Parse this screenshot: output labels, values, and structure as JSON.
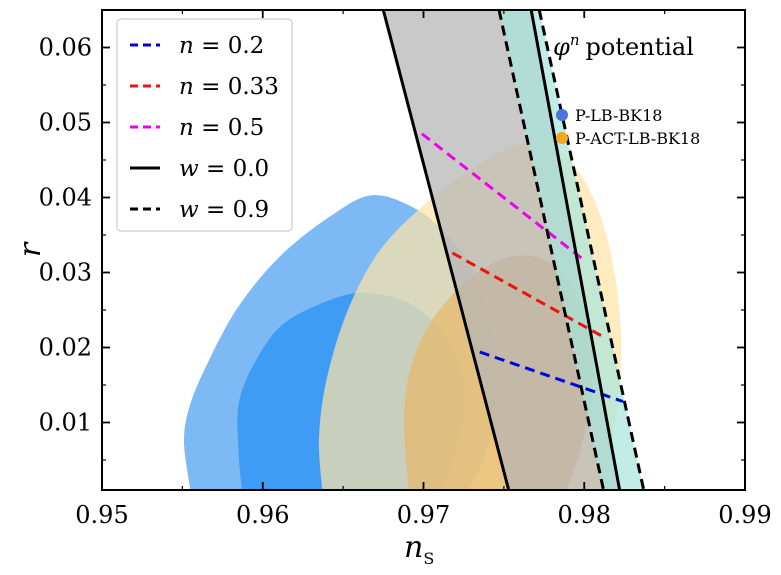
{
  "chart_data": {
    "type": "contour",
    "title": "",
    "annotation": {
      "symbol": "φ",
      "superscript": "n",
      "text": "potential"
    },
    "xlabel": {
      "main": "n",
      "subscript": "S"
    },
    "ylabel": "r",
    "xlim": [
      0.95,
      0.99
    ],
    "ylim": [
      0.001,
      0.065
    ],
    "xticks": [
      0.95,
      0.96,
      0.97,
      0.98,
      0.99
    ],
    "xtick_labels": [
      "0.95",
      "0.96",
      "0.97",
      "0.98",
      "0.99"
    ],
    "yticks": [
      0.01,
      0.02,
      0.03,
      0.04,
      0.05,
      0.06
    ],
    "ytick_labels": [
      "0.01",
      "0.02",
      "0.03",
      "0.04",
      "0.05",
      "0.06"
    ],
    "colors": {
      "blue_outer": "#7db9f5",
      "blue_inner": "#3f9cf5",
      "orange_outer": "#fde3a7",
      "orange_inner": "#e6b86a",
      "gray_band": "#b4b4b4",
      "teal_band": "#a8e6dc",
      "n02": "#0000dd",
      "n033": "#ee1111",
      "n05": "#ee00ee",
      "marker_blue": "#4a73e0",
      "marker_orange": "#f5a623"
    },
    "contours": [
      {
        "name": "P-LB-BK18 95%",
        "level": "outer",
        "points": [
          [
            0.9555,
            0.001
          ],
          [
            0.9551,
            0.0075
          ],
          [
            0.9555,
            0.0125
          ],
          [
            0.9567,
            0.0185
          ],
          [
            0.9585,
            0.0255
          ],
          [
            0.961,
            0.032
          ],
          [
            0.9642,
            0.0375
          ],
          [
            0.9668,
            0.0403
          ],
          [
            0.9695,
            0.0385
          ],
          [
            0.9717,
            0.0345
          ],
          [
            0.9733,
            0.0295
          ],
          [
            0.9742,
            0.0235
          ],
          [
            0.9747,
            0.017
          ],
          [
            0.9745,
            0.011
          ],
          [
            0.9738,
            0.0055
          ],
          [
            0.9728,
            0.001
          ]
        ]
      },
      {
        "name": "P-LB-BK18 68%",
        "level": "inner",
        "points": [
          [
            0.9587,
            0.001
          ],
          [
            0.9585,
            0.006
          ],
          [
            0.9585,
            0.0125
          ],
          [
            0.9595,
            0.018
          ],
          [
            0.9612,
            0.023
          ],
          [
            0.9638,
            0.026
          ],
          [
            0.9662,
            0.0273
          ],
          [
            0.969,
            0.026
          ],
          [
            0.9712,
            0.022
          ],
          [
            0.9723,
            0.017
          ],
          [
            0.9725,
            0.0115
          ],
          [
            0.972,
            0.0065
          ],
          [
            0.9712,
            0.001
          ]
        ]
      },
      {
        "name": "P-ACT-LB-BK18 95%",
        "level": "outer",
        "points": [
          [
            0.9637,
            0.001
          ],
          [
            0.9635,
            0.008
          ],
          [
            0.964,
            0.016
          ],
          [
            0.9653,
            0.025
          ],
          [
            0.9673,
            0.033
          ],
          [
            0.9703,
            0.0395
          ],
          [
            0.9735,
            0.0445
          ],
          [
            0.9762,
            0.0472
          ],
          [
            0.9786,
            0.046
          ],
          [
            0.9806,
            0.0398
          ],
          [
            0.9818,
            0.031
          ],
          [
            0.9823,
            0.021
          ],
          [
            0.982,
            0.011
          ],
          [
            0.9812,
            0.001
          ]
        ]
      },
      {
        "name": "P-ACT-LB-BK18 68%",
        "level": "inner",
        "points": [
          [
            0.9691,
            0.001
          ],
          [
            0.9688,
            0.0085
          ],
          [
            0.969,
            0.0155
          ],
          [
            0.9702,
            0.0225
          ],
          [
            0.9725,
            0.0285
          ],
          [
            0.9752,
            0.032
          ],
          [
            0.9777,
            0.0315
          ],
          [
            0.9796,
            0.027
          ],
          [
            0.9805,
            0.0205
          ],
          [
            0.9804,
            0.0125
          ],
          [
            0.9795,
            0.0045
          ],
          [
            0.9789,
            0.001
          ]
        ]
      }
    ],
    "bands": [
      {
        "name": "w=0.0 band",
        "color_key": "gray_band",
        "left": [
          [
            0.9675,
            0.065
          ],
          [
            0.9753,
            0.001
          ]
        ],
        "right": [
          [
            0.9767,
            0.065
          ],
          [
            0.9822,
            0.001
          ]
        ]
      },
      {
        "name": "w=0.9 band",
        "color_key": "teal_band",
        "left": [
          [
            0.9747,
            0.065
          ],
          [
            0.9812,
            0.001
          ]
        ],
        "right": [
          [
            0.9772,
            0.065
          ],
          [
            0.9837,
            0.001
          ]
        ]
      }
    ],
    "series": [
      {
        "name": "n=0.2",
        "style": "dashed",
        "color_key": "n02",
        "x": [
          0.9735,
          0.9824
        ],
        "y": [
          0.0194,
          0.0128
        ]
      },
      {
        "name": "n=0.33",
        "style": "dashed",
        "color_key": "n033",
        "x": [
          0.9718,
          0.9812
        ],
        "y": [
          0.0326,
          0.0214
        ]
      },
      {
        "name": "n=0.5",
        "style": "dashed",
        "color_key": "n05",
        "x": [
          0.9699,
          0.9799
        ],
        "y": [
          0.0485,
          0.0318
        ]
      },
      {
        "name": "w=0.0 left",
        "style": "solid",
        "color_key": "black",
        "x": [
          0.9675,
          0.9753
        ],
        "y": [
          0.065,
          0.001
        ]
      },
      {
        "name": "w=0.0 right",
        "style": "solid",
        "color_key": "black",
        "x": [
          0.9767,
          0.9822
        ],
        "y": [
          0.065,
          0.001
        ]
      },
      {
        "name": "w=0.9 left",
        "style": "dashed",
        "color_key": "black",
        "x": [
          0.9747,
          0.9812
        ],
        "y": [
          0.065,
          0.001
        ]
      },
      {
        "name": "w=0.9 right",
        "style": "dashed",
        "color_key": "black",
        "x": [
          0.9772,
          0.9837
        ],
        "y": [
          0.065,
          0.001
        ]
      }
    ],
    "legend_lines": [
      {
        "label": "n = 0.2",
        "var": "n",
        "value": "0.2",
        "style": "dashed",
        "color_key": "n02"
      },
      {
        "label": "n = 0.33",
        "var": "n",
        "value": "0.33",
        "style": "dashed",
        "color_key": "n033"
      },
      {
        "label": "n = 0.5",
        "var": "n",
        "value": "0.5",
        "style": "dashed",
        "color_key": "n05"
      },
      {
        "label": "w = 0.0",
        "var": "w",
        "value": "0.0",
        "style": "solid",
        "color_key": "black"
      },
      {
        "label": "w = 0.9",
        "var": "w",
        "value": "0.9",
        "style": "dashed",
        "color_key": "black"
      }
    ],
    "legend_markers": [
      {
        "label": "P-LB-BK18",
        "color_key": "marker_blue"
      },
      {
        "label": "P-ACT-LB-BK18",
        "color_key": "marker_orange"
      }
    ]
  }
}
